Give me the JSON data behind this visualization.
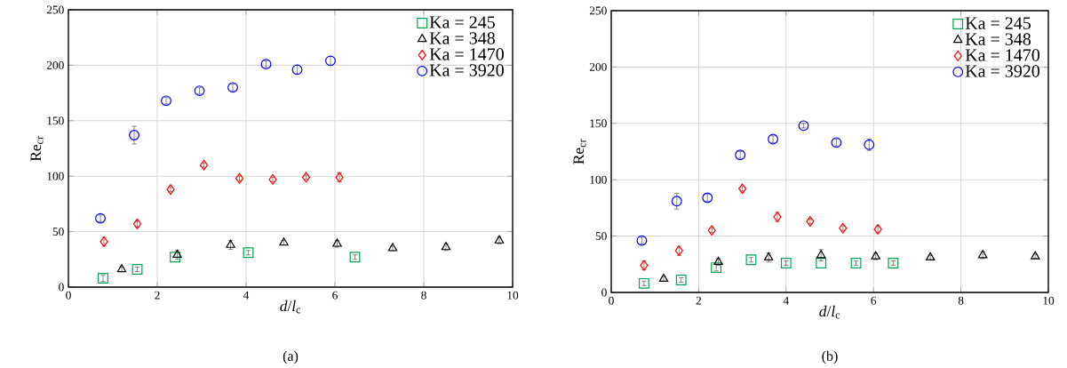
{
  "chart_data": [
    {
      "type": "scatter",
      "xlabel": "*d*/*l*$_{c}$",
      "ylabel": "Re$_{cr}$",
      "annotations": [
        "(a)"
      ],
      "xlim": [
        0,
        10
      ],
      "ylim": [
        0,
        250
      ],
      "xticks": [
        0,
        2,
        4,
        6,
        8,
        10
      ],
      "yticks": [
        0,
        50,
        100,
        150,
        200,
        250
      ],
      "grid": true,
      "legend": "top right",
      "series": [
        {
          "name": "Ka = 245",
          "color": "#00a651",
          "marker": "square",
          "x": [
            0.78,
            1.55,
            2.4,
            4.05,
            6.45
          ],
          "values": [
            8,
            16,
            27,
            31,
            27
          ],
          "errors": [
            3,
            2,
            null,
            2,
            2
          ]
        },
        {
          "name": "Ka = 348",
          "color": "#000000",
          "marker": "triangle",
          "x": [
            1.2,
            2.45,
            3.65,
            4.85,
            6.05,
            7.3,
            8.5,
            9.7
          ],
          "values": [
            16,
            29,
            38,
            40,
            39,
            35,
            36,
            42
          ],
          "errors": [
            2,
            4,
            4,
            2,
            3,
            2,
            3,
            3
          ]
        },
        {
          "name": "Ka = 1470",
          "color": "#ff0000",
          "marker": "diamond",
          "x": [
            0.8,
            1.55,
            2.3,
            3.05,
            3.85,
            4.6,
            5.35,
            6.1
          ],
          "values": [
            41,
            57,
            88,
            110,
            98,
            97,
            99,
            99
          ],
          "errors": [
            4,
            3,
            2,
            2,
            2,
            2,
            2,
            4
          ]
        },
        {
          "name": "Ka = 3920",
          "color": "#0000ff",
          "marker": "circle",
          "x": [
            0.72,
            1.48,
            2.2,
            2.95,
            3.7,
            4.45,
            5.15,
            5.9
          ],
          "values": [
            62,
            137,
            168,
            177,
            180,
            201,
            196,
            204
          ],
          "errors": [
            3,
            8,
            3,
            3,
            3,
            3,
            4,
            4
          ]
        }
      ]
    },
    {
      "type": "scatter",
      "xlabel": "*d*/*l*$_{c}$",
      "ylabel": "Re$_{cr}$",
      "annotations": [
        "(b)"
      ],
      "xlim": [
        0,
        10
      ],
      "ylim": [
        0,
        250
      ],
      "xticks": [
        0,
        2,
        4,
        6,
        8,
        10
      ],
      "yticks": [
        0,
        50,
        100,
        150,
        200,
        250
      ],
      "grid": true,
      "legend": "top right",
      "series": [
        {
          "name": "Ka = 245",
          "color": "#00a651",
          "marker": "square",
          "x": [
            0.75,
            1.6,
            2.4,
            3.2,
            4.0,
            4.8,
            5.6,
            6.45
          ],
          "values": [
            8,
            11,
            22,
            29,
            26,
            26,
            26,
            26
          ],
          "errors": [
            2,
            2,
            3,
            2,
            2,
            null,
            2,
            2
          ]
        },
        {
          "name": "Ka = 348",
          "color": "#000000",
          "marker": "triangle",
          "x": [
            1.2,
            2.45,
            3.6,
            4.8,
            6.05,
            7.3,
            8.5,
            9.7
          ],
          "values": [
            12,
            27,
            31,
            33,
            32,
            31,
            33,
            32
          ],
          "errors": [
            2,
            3,
            4,
            5,
            3,
            2,
            3,
            2
          ]
        },
        {
          "name": "Ka = 1470",
          "color": "#ff0000",
          "marker": "diamond",
          "x": [
            0.75,
            1.55,
            2.3,
            3.0,
            3.8,
            4.55,
            5.3,
            6.1
          ],
          "values": [
            24,
            37,
            55,
            92,
            67,
            63,
            57,
            56
          ],
          "errors": [
            4,
            4,
            2,
            2,
            4,
            2,
            2,
            3
          ]
        },
        {
          "name": "Ka = 3920",
          "color": "#0000ff",
          "marker": "circle",
          "x": [
            0.7,
            1.5,
            2.2,
            2.95,
            3.7,
            4.4,
            5.15,
            5.9
          ],
          "values": [
            46,
            81,
            84,
            122,
            136,
            148,
            133,
            131
          ],
          "errors": [
            3,
            7,
            3,
            3,
            3,
            2,
            3,
            5
          ]
        }
      ]
    }
  ]
}
